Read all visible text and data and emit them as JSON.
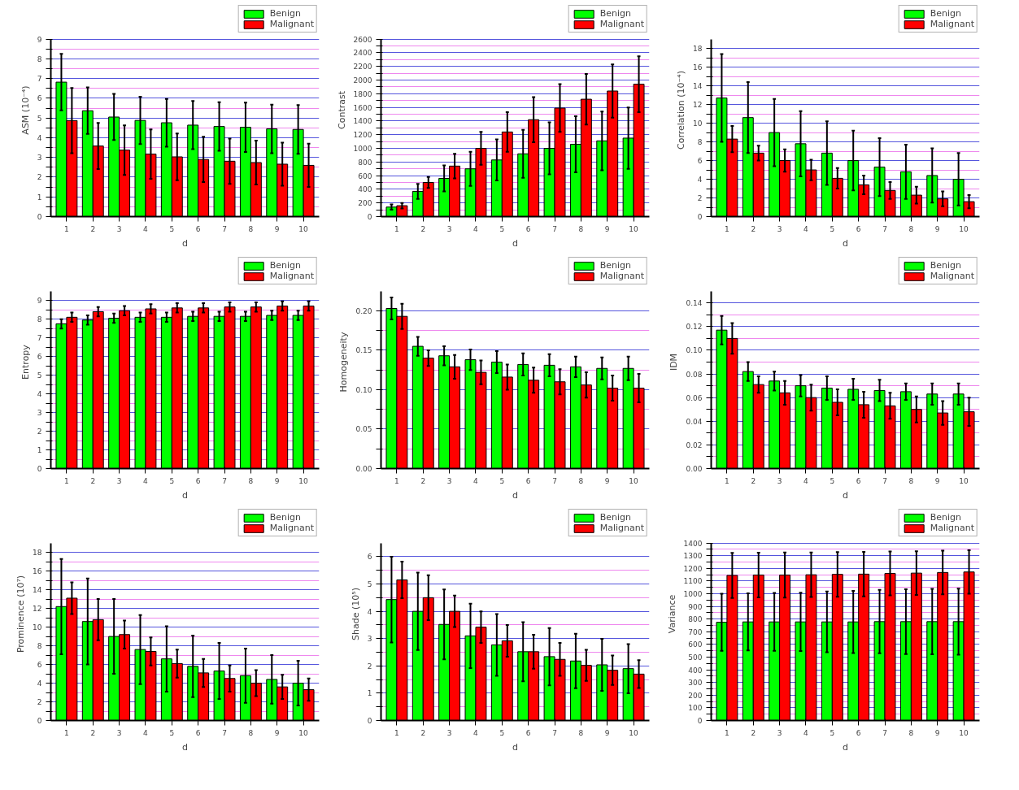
{
  "chart_data": [
    {
      "type": "bar",
      "xlabel": "d",
      "ylabel": "ASM (10⁻⁴)",
      "categories": [
        "1",
        "2",
        "3",
        "4",
        "5",
        "6",
        "7",
        "8",
        "9",
        "10"
      ],
      "ylim": [
        0,
        9
      ],
      "yticks": [
        0,
        {
          "value": 0.5,
          "label": null
        },
        1,
        {
          "value": 1.5,
          "label": null
        },
        2,
        {
          "value": 2.5,
          "label": null
        },
        3,
        {
          "value": 3.5,
          "label": null
        },
        4,
        {
          "value": 4.5,
          "label": null
        },
        5,
        {
          "value": 5.5,
          "label": null
        },
        6,
        {
          "value": 6.5,
          "label": null
        },
        7,
        {
          "value": 7.5,
          "label": null
        },
        8,
        {
          "value": 8.5,
          "label": null
        },
        9
      ],
      "grid": "y",
      "legend": "top right",
      "series": [
        {
          "name": "Benign",
          "color": "#00ff00",
          "values": [
            6.82,
            5.37,
            5.05,
            4.88,
            4.76,
            4.64,
            4.57,
            4.53,
            4.45,
            4.42
          ],
          "errors": [
            1.43,
            1.18,
            1.17,
            1.2,
            1.21,
            1.22,
            1.23,
            1.25,
            1.23,
            1.24
          ]
        },
        {
          "name": "Malignant",
          "color": "#ff0000",
          "values": [
            4.87,
            3.58,
            3.37,
            3.17,
            3.03,
            2.9,
            2.81,
            2.74,
            2.66,
            2.6
          ],
          "errors": [
            1.65,
            1.17,
            1.26,
            1.25,
            1.19,
            1.15,
            1.15,
            1.11,
            1.09,
            1.1
          ]
        }
      ]
    },
    {
      "type": "bar",
      "xlabel": "d",
      "ylabel": "Contrast",
      "categories": [
        "1",
        "2",
        "3",
        "4",
        "5",
        "6",
        "7",
        "8",
        "9",
        "10"
      ],
      "ylim": [
        0,
        2600
      ],
      "yticks": [
        0,
        {
          "value": 100,
          "label": null
        },
        200,
        {
          "value": 300,
          "label": null
        },
        400,
        {
          "value": 500,
          "label": null
        },
        600,
        {
          "value": 700,
          "label": null
        },
        800,
        {
          "value": 900,
          "label": null
        },
        1000,
        {
          "value": 1100,
          "label": null
        },
        1200,
        {
          "value": 1300,
          "label": null
        },
        1400,
        {
          "value": 1500,
          "label": null
        },
        1600,
        {
          "value": 1700,
          "label": null
        },
        1800,
        {
          "value": 1900,
          "label": null
        },
        2000,
        {
          "value": 2100,
          "label": null
        },
        2200,
        {
          "value": 2300,
          "label": null
        },
        2400,
        {
          "value": 2500,
          "label": null
        },
        2600
      ],
      "grid": "y",
      "legend": "top right",
      "series": [
        {
          "name": "Benign",
          "color": "#00ff00",
          "values": [
            140,
            370,
            560,
            700,
            830,
            920,
            1000,
            1060,
            1110,
            1150
          ],
          "errors": [
            40,
            110,
            190,
            250,
            300,
            350,
            380,
            410,
            430,
            450
          ]
        },
        {
          "name": "Malignant",
          "color": "#ff0000",
          "values": [
            160,
            500,
            740,
            1000,
            1240,
            1420,
            1590,
            1720,
            1840,
            1940
          ],
          "errors": [
            40,
            80,
            180,
            240,
            290,
            330,
            350,
            370,
            390,
            410
          ]
        }
      ]
    },
    {
      "type": "bar",
      "xlabel": "d",
      "ylabel": "Correlation (10⁻⁴)",
      "categories": [
        "1",
        "2",
        "3",
        "4",
        "5",
        "6",
        "7",
        "8",
        "9",
        "10"
      ],
      "ylim": [
        0,
        19
      ],
      "yticks": [
        0,
        {
          "value": 1,
          "label": null
        },
        2,
        {
          "value": 3,
          "label": null
        },
        4,
        {
          "value": 5,
          "label": null
        },
        6,
        {
          "value": 7,
          "label": null
        },
        8,
        {
          "value": 9,
          "label": null
        },
        10,
        {
          "value": 11,
          "label": null
        },
        12,
        {
          "value": 13,
          "label": null
        },
        14,
        {
          "value": 15,
          "label": null
        },
        16,
        {
          "value": 17,
          "label": null
        },
        18
      ],
      "grid": "y",
      "legend": "top right",
      "series": [
        {
          "name": "Benign",
          "color": "#00ff00",
          "values": [
            12.7,
            10.6,
            9.0,
            7.8,
            6.8,
            6.0,
            5.3,
            4.8,
            4.4,
            4.0
          ],
          "errors": [
            4.7,
            3.8,
            3.6,
            3.5,
            3.4,
            3.2,
            3.1,
            2.9,
            2.9,
            2.8
          ]
        },
        {
          "name": "Malignant",
          "color": "#ff0000",
          "values": [
            8.3,
            6.8,
            6.0,
            5.0,
            4.1,
            3.4,
            2.8,
            2.3,
            1.9,
            1.6
          ],
          "errors": [
            1.4,
            0.8,
            1.2,
            1.1,
            1.1,
            1.0,
            0.9,
            0.9,
            0.8,
            0.7
          ]
        }
      ]
    },
    {
      "type": "bar",
      "xlabel": "d",
      "ylabel": "Entropy",
      "categories": [
        "1",
        "2",
        "3",
        "4",
        "5",
        "6",
        "7",
        "8",
        "9",
        "10"
      ],
      "ylim": [
        0,
        9.5
      ],
      "yticks": [
        0,
        {
          "value": 0.5,
          "label": null
        },
        1,
        {
          "value": 1.5,
          "label": null
        },
        2,
        {
          "value": 2.5,
          "label": null
        },
        3,
        {
          "value": 3.5,
          "label": null
        },
        4,
        {
          "value": 4.5,
          "label": null
        },
        5,
        {
          "value": 5.5,
          "label": null
        },
        6,
        {
          "value": 6.5,
          "label": null
        },
        7,
        {
          "value": 7.5,
          "label": null
        },
        8,
        {
          "value": 8.5,
          "label": null
        },
        9
      ],
      "grid": "y",
      "legend": "top right",
      "series": [
        {
          "name": "Benign",
          "color": "#00ff00",
          "values": [
            7.75,
            7.95,
            8.05,
            8.1,
            8.1,
            8.15,
            8.15,
            8.15,
            8.2,
            8.2
          ],
          "errors": [
            0.25,
            0.25,
            0.25,
            0.25,
            0.25,
            0.25,
            0.25,
            0.25,
            0.25,
            0.25
          ]
        },
        {
          "name": "Malignant",
          "color": "#ff0000",
          "values": [
            8.1,
            8.4,
            8.45,
            8.55,
            8.6,
            8.6,
            8.65,
            8.65,
            8.7,
            8.7
          ],
          "errors": [
            0.25,
            0.25,
            0.25,
            0.25,
            0.25,
            0.25,
            0.25,
            0.25,
            0.25,
            0.25
          ]
        }
      ]
    },
    {
      "type": "bar",
      "xlabel": "d",
      "ylabel": "Homogeneity",
      "categories": [
        "1",
        "2",
        "3",
        "4",
        "5",
        "6",
        "7",
        "8",
        "9",
        "10"
      ],
      "ylim": [
        0,
        0.225
      ],
      "yticks": [
        {
          "value": 0,
          "label": "0.00"
        },
        {
          "value": 0.025,
          "label": null
        },
        0.05,
        {
          "value": 0.075,
          "label": null
        },
        {
          "value": 0.1,
          "label": "0.10"
        },
        {
          "value": 0.125,
          "label": null
        },
        0.15,
        {
          "value": 0.175,
          "label": null
        },
        {
          "value": 0.2,
          "label": "0.20"
        }
      ],
      "grid": "y",
      "legend": "top right",
      "series": [
        {
          "name": "Benign",
          "color": "#00ff00",
          "values": [
            0.203,
            0.155,
            0.143,
            0.138,
            0.135,
            0.132,
            0.131,
            0.129,
            0.127,
            0.127
          ],
          "errors": [
            0.014,
            0.012,
            0.012,
            0.013,
            0.014,
            0.014,
            0.014,
            0.013,
            0.014,
            0.015
          ]
        },
        {
          "name": "Malignant",
          "color": "#ff0000",
          "values": [
            0.193,
            0.14,
            0.129,
            0.122,
            0.116,
            0.112,
            0.11,
            0.106,
            0.102,
            0.102
          ],
          "errors": [
            0.016,
            0.01,
            0.015,
            0.015,
            0.016,
            0.016,
            0.016,
            0.016,
            0.016,
            0.018
          ]
        }
      ]
    },
    {
      "type": "bar",
      "xlabel": "d",
      "ylabel": "IDM",
      "categories": [
        "1",
        "2",
        "3",
        "4",
        "5",
        "6",
        "7",
        "8",
        "9",
        "10"
      ],
      "ylim": [
        0,
        0.15
      ],
      "yticks": [
        {
          "value": 0,
          "label": "0.00"
        },
        {
          "value": 0.01,
          "label": null
        },
        0.02,
        {
          "value": 0.03,
          "label": null
        },
        0.04,
        {
          "value": 0.05,
          "label": null
        },
        0.06,
        {
          "value": 0.07,
          "label": null
        },
        0.08,
        {
          "value": 0.09,
          "label": null
        },
        {
          "value": 0.1,
          "label": "0.10"
        },
        {
          "value": 0.11,
          "label": null
        },
        0.12,
        {
          "value": 0.13,
          "label": null
        },
        0.14
      ],
      "grid": "y",
      "legend": "top right",
      "series": [
        {
          "name": "Benign",
          "color": "#00ff00",
          "values": [
            0.117,
            0.082,
            0.074,
            0.07,
            0.068,
            0.067,
            0.066,
            0.065,
            0.063,
            0.063
          ],
          "errors": [
            0.012,
            0.008,
            0.008,
            0.009,
            0.01,
            0.009,
            0.009,
            0.007,
            0.009,
            0.009
          ]
        },
        {
          "name": "Malignant",
          "color": "#ff0000",
          "values": [
            0.11,
            0.071,
            0.064,
            0.06,
            0.056,
            0.054,
            0.053,
            0.05,
            0.047,
            0.048
          ],
          "errors": [
            0.013,
            0.007,
            0.01,
            0.011,
            0.011,
            0.011,
            0.011,
            0.011,
            0.01,
            0.012
          ]
        }
      ]
    },
    {
      "type": "bar",
      "xlabel": "d",
      "ylabel": "Prominence (10⁷)",
      "categories": [
        "1",
        "2",
        "3",
        "4",
        "5",
        "6",
        "7",
        "8",
        "9",
        "10"
      ],
      "ylim": [
        0,
        19
      ],
      "yticks": [
        0,
        {
          "value": 1,
          "label": null
        },
        2,
        {
          "value": 3,
          "label": null
        },
        4,
        {
          "value": 5,
          "label": null
        },
        6,
        {
          "value": 7,
          "label": null
        },
        8,
        {
          "value": 9,
          "label": null
        },
        10,
        {
          "value": 11,
          "label": null
        },
        12,
        {
          "value": 13,
          "label": null
        },
        14,
        {
          "value": 15,
          "label": null
        },
        16,
        {
          "value": 17,
          "label": null
        },
        18
      ],
      "grid": "y",
      "legend": "top right",
      "series": [
        {
          "name": "Benign",
          "color": "#00ff00",
          "values": [
            12.2,
            10.6,
            9.0,
            7.6,
            6.6,
            5.8,
            5.3,
            4.8,
            4.4,
            4.0
          ],
          "errors": [
            5.1,
            4.6,
            4.0,
            3.7,
            3.5,
            3.3,
            3.0,
            2.9,
            2.6,
            2.4
          ]
        },
        {
          "name": "Malignant",
          "color": "#ff0000",
          "values": [
            13.1,
            10.8,
            9.2,
            7.4,
            6.1,
            5.1,
            4.5,
            4.0,
            3.6,
            3.3
          ],
          "errors": [
            1.7,
            2.2,
            1.5,
            1.5,
            1.5,
            1.5,
            1.4,
            1.4,
            1.3,
            1.2
          ]
        }
      ]
    },
    {
      "type": "bar",
      "xlabel": "d",
      "ylabel": "Shade (10⁵)",
      "categories": [
        "1",
        "2",
        "3",
        "4",
        "5",
        "6",
        "7",
        "8",
        "9",
        "10"
      ],
      "ylim": [
        0,
        6.5
      ],
      "yticks": [
        0,
        {
          "value": 0.5,
          "label": null
        },
        1,
        {
          "value": 1.5,
          "label": null
        },
        2,
        {
          "value": 2.5,
          "label": null
        },
        3,
        {
          "value": 3.5,
          "label": null
        },
        4,
        {
          "value": 4.5,
          "label": null
        },
        5,
        {
          "value": 5.5,
          "label": null
        },
        6
      ],
      "grid": "y",
      "legend": "top right",
      "series": [
        {
          "name": "Benign",
          "color": "#00ff00",
          "values": [
            4.43,
            4.0,
            3.52,
            3.1,
            2.77,
            2.52,
            2.34,
            2.18,
            2.04,
            1.9
          ],
          "errors": [
            1.57,
            1.42,
            1.28,
            1.18,
            1.13,
            1.08,
            1.05,
            1.0,
            0.95,
            0.9
          ]
        },
        {
          "name": "Malignant",
          "color": "#ff0000",
          "values": [
            5.15,
            4.5,
            4.0,
            3.42,
            2.92,
            2.52,
            2.24,
            2.02,
            1.84,
            1.7
          ],
          "errors": [
            0.67,
            0.82,
            0.58,
            0.58,
            0.58,
            0.62,
            0.6,
            0.57,
            0.54,
            0.51
          ]
        }
      ]
    },
    {
      "type": "bar",
      "xlabel": "d",
      "ylabel": "Variance",
      "categories": [
        "1",
        "2",
        "3",
        "4",
        "5",
        "6",
        "7",
        "8",
        "9",
        "10"
      ],
      "ylim": [
        0,
        1400
      ],
      "yticks": [
        0,
        {
          "value": 50,
          "label": null
        },
        100,
        {
          "value": 150,
          "label": null
        },
        200,
        {
          "value": 250,
          "label": null
        },
        300,
        {
          "value": 350,
          "label": null
        },
        400,
        {
          "value": 450,
          "label": null
        },
        500,
        {
          "value": 550,
          "label": null
        },
        600,
        {
          "value": 650,
          "label": null
        },
        700,
        {
          "value": 750,
          "label": null
        },
        800,
        {
          "value": 850,
          "label": null
        },
        900,
        {
          "value": 950,
          "label": null
        },
        1000,
        {
          "value": 1050,
          "label": null
        },
        1100,
        {
          "value": 1150,
          "label": null
        },
        1200,
        {
          "value": 1250,
          "label": null
        },
        1300,
        {
          "value": 1350,
          "label": null
        },
        1400
      ],
      "grid": "y",
      "legend": "top right",
      "series": [
        {
          "name": "Benign",
          "color": "#00ff00",
          "values": [
            775,
            778,
            778,
            778,
            778,
            778,
            780,
            780,
            780,
            780
          ],
          "errors": [
            225,
            225,
            228,
            230,
            240,
            245,
            250,
            255,
            258,
            260
          ]
        },
        {
          "name": "Malignant",
          "color": "#ff0000",
          "values": [
            1145,
            1148,
            1148,
            1150,
            1153,
            1155,
            1160,
            1163,
            1168,
            1172
          ],
          "errors": [
            178,
            176,
            178,
            176,
            176,
            176,
            173,
            172,
            172,
            172
          ]
        }
      ]
    }
  ]
}
